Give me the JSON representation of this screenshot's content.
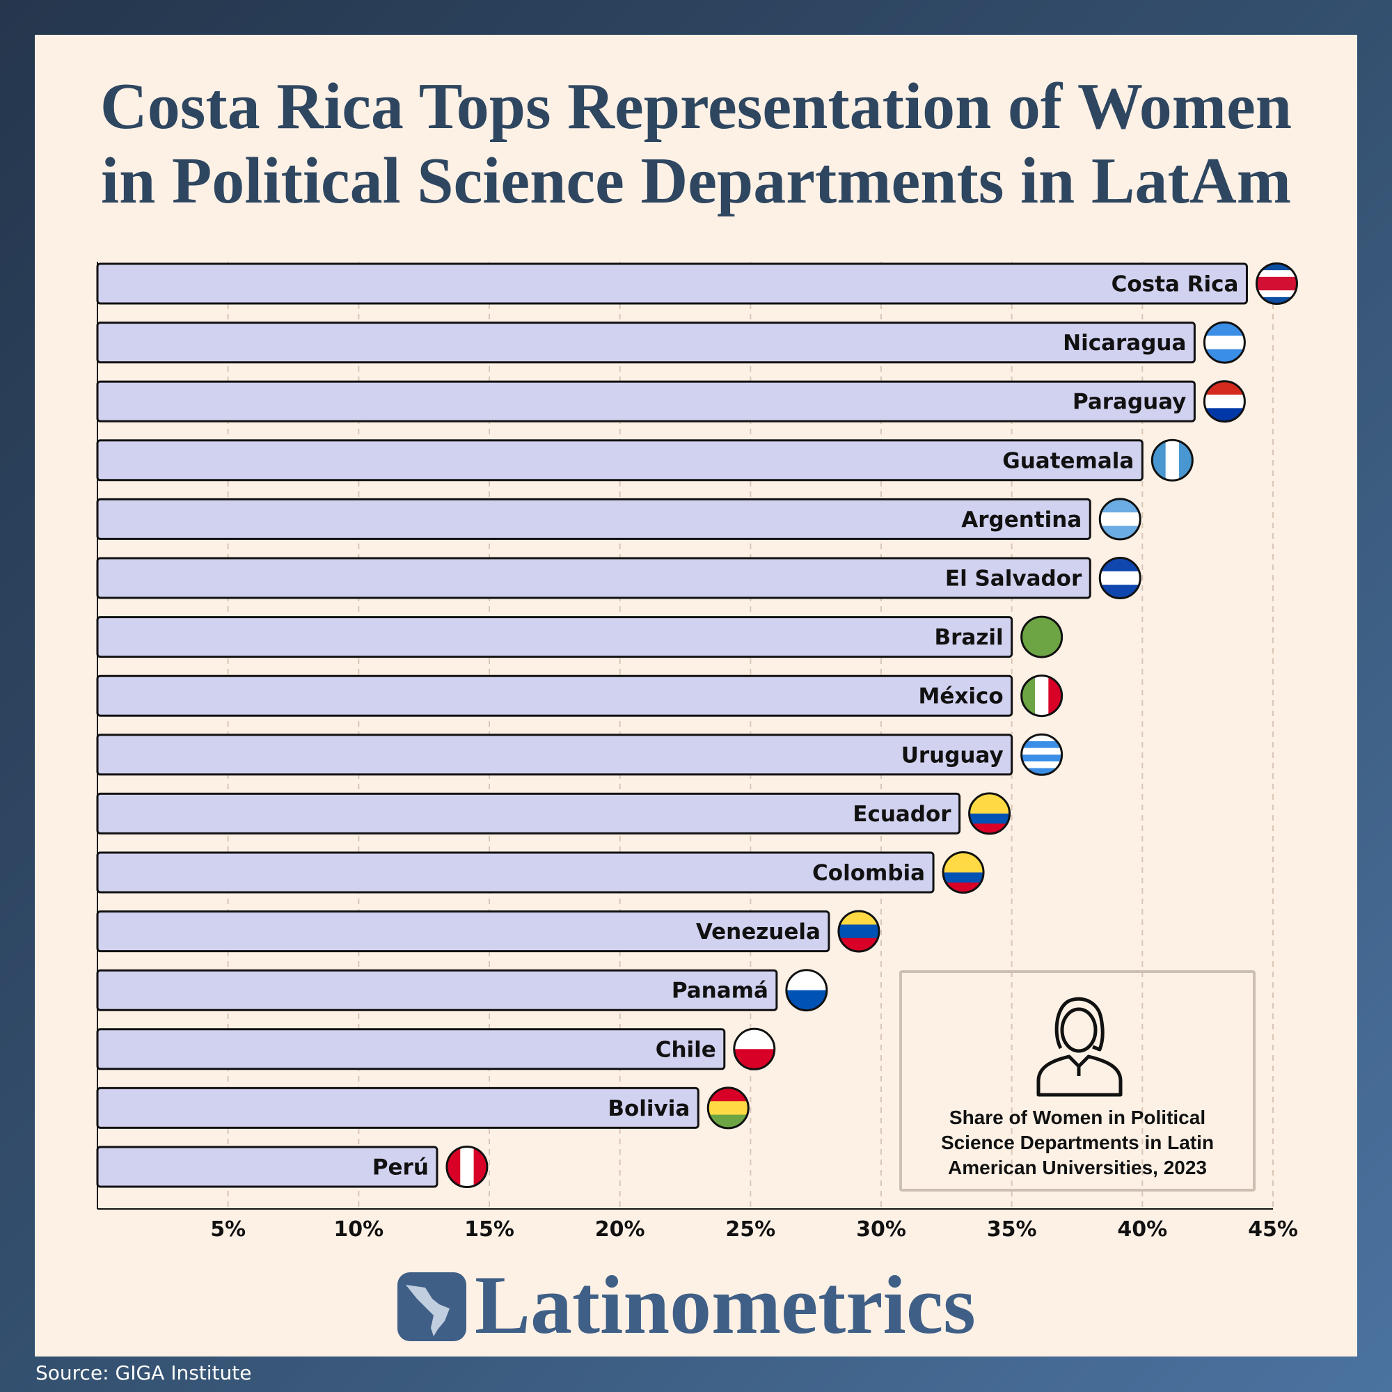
{
  "title_lines": [
    "Costa Rica Tops Representation of Women",
    "in Political Science Departments in LatAm"
  ],
  "legend_text": "Share of Women in Political Science Departments in Latin American Universities, 2023",
  "logo": "Latinometrics",
  "source": "Source: GIGA Institute",
  "chart_data": {
    "type": "bar",
    "orientation": "horizontal",
    "categories": [
      "Costa Rica",
      "Nicaragua",
      "Paraguay",
      "Guatemala",
      "Argentina",
      "El Salvador",
      "Brazil",
      "México",
      "Uruguay",
      "Ecuador",
      "Colombia",
      "Venezuela",
      "Panamá",
      "Chile",
      "Bolivia",
      "Perú"
    ],
    "values": [
      44,
      42,
      42,
      40,
      38,
      38,
      35,
      35,
      35,
      33,
      32,
      28,
      26,
      24,
      23,
      13
    ],
    "xlim": [
      0,
      45
    ],
    "x_ticks": [
      "5%",
      "10%",
      "15%",
      "20%",
      "25%",
      "30%",
      "35%",
      "40%",
      "45%"
    ],
    "grid": "vertical dashed",
    "bar_color": "#d1d1f0",
    "flags": [
      {
        "dir": "h",
        "stripes": [
          "#0b4ea2",
          "#fff",
          "#d21034",
          "#d21034",
          "#fff",
          "#0b4ea2"
        ]
      },
      {
        "dir": "h",
        "stripes": [
          "#3a8ee6",
          "#fff",
          "#3a8ee6"
        ]
      },
      {
        "dir": "h",
        "stripes": [
          "#d52b1e",
          "#fff",
          "#0038a8"
        ]
      },
      {
        "dir": "v",
        "stripes": [
          "#4997d0",
          "#fff",
          "#4997d0"
        ]
      },
      {
        "dir": "h",
        "stripes": [
          "#6cace4",
          "#fff",
          "#6cace4"
        ]
      },
      {
        "dir": "h",
        "stripes": [
          "#0f47af",
          "#fff",
          "#0f47af"
        ]
      },
      {
        "dir": "h",
        "stripes": [
          "#6da544"
        ]
      },
      {
        "dir": "v",
        "stripes": [
          "#6da544",
          "#fff",
          "#d80027"
        ]
      },
      {
        "dir": "h",
        "stripes": [
          "#fff",
          "#3a8ee6",
          "#fff",
          "#3a8ee6",
          "#fff",
          "#3a8ee6"
        ]
      },
      {
        "dir": "h",
        "stripes": [
          "#ffda44",
          "#ffda44",
          "#0052b4",
          "#d80027"
        ]
      },
      {
        "dir": "h",
        "stripes": [
          "#ffda44",
          "#ffda44",
          "#0052b4",
          "#d80027"
        ]
      },
      {
        "dir": "h",
        "stripes": [
          "#ffda44",
          "#0052b4",
          "#d80027"
        ]
      },
      {
        "dir": "h",
        "stripes": [
          "#fff",
          "#0052b4"
        ]
      },
      {
        "dir": "h",
        "stripes": [
          "#fff",
          "#d80027"
        ]
      },
      {
        "dir": "h",
        "stripes": [
          "#d80027",
          "#ffda44",
          "#6da544"
        ]
      },
      {
        "dir": "v",
        "stripes": [
          "#d80027",
          "#fff",
          "#d80027"
        ]
      }
    ]
  }
}
